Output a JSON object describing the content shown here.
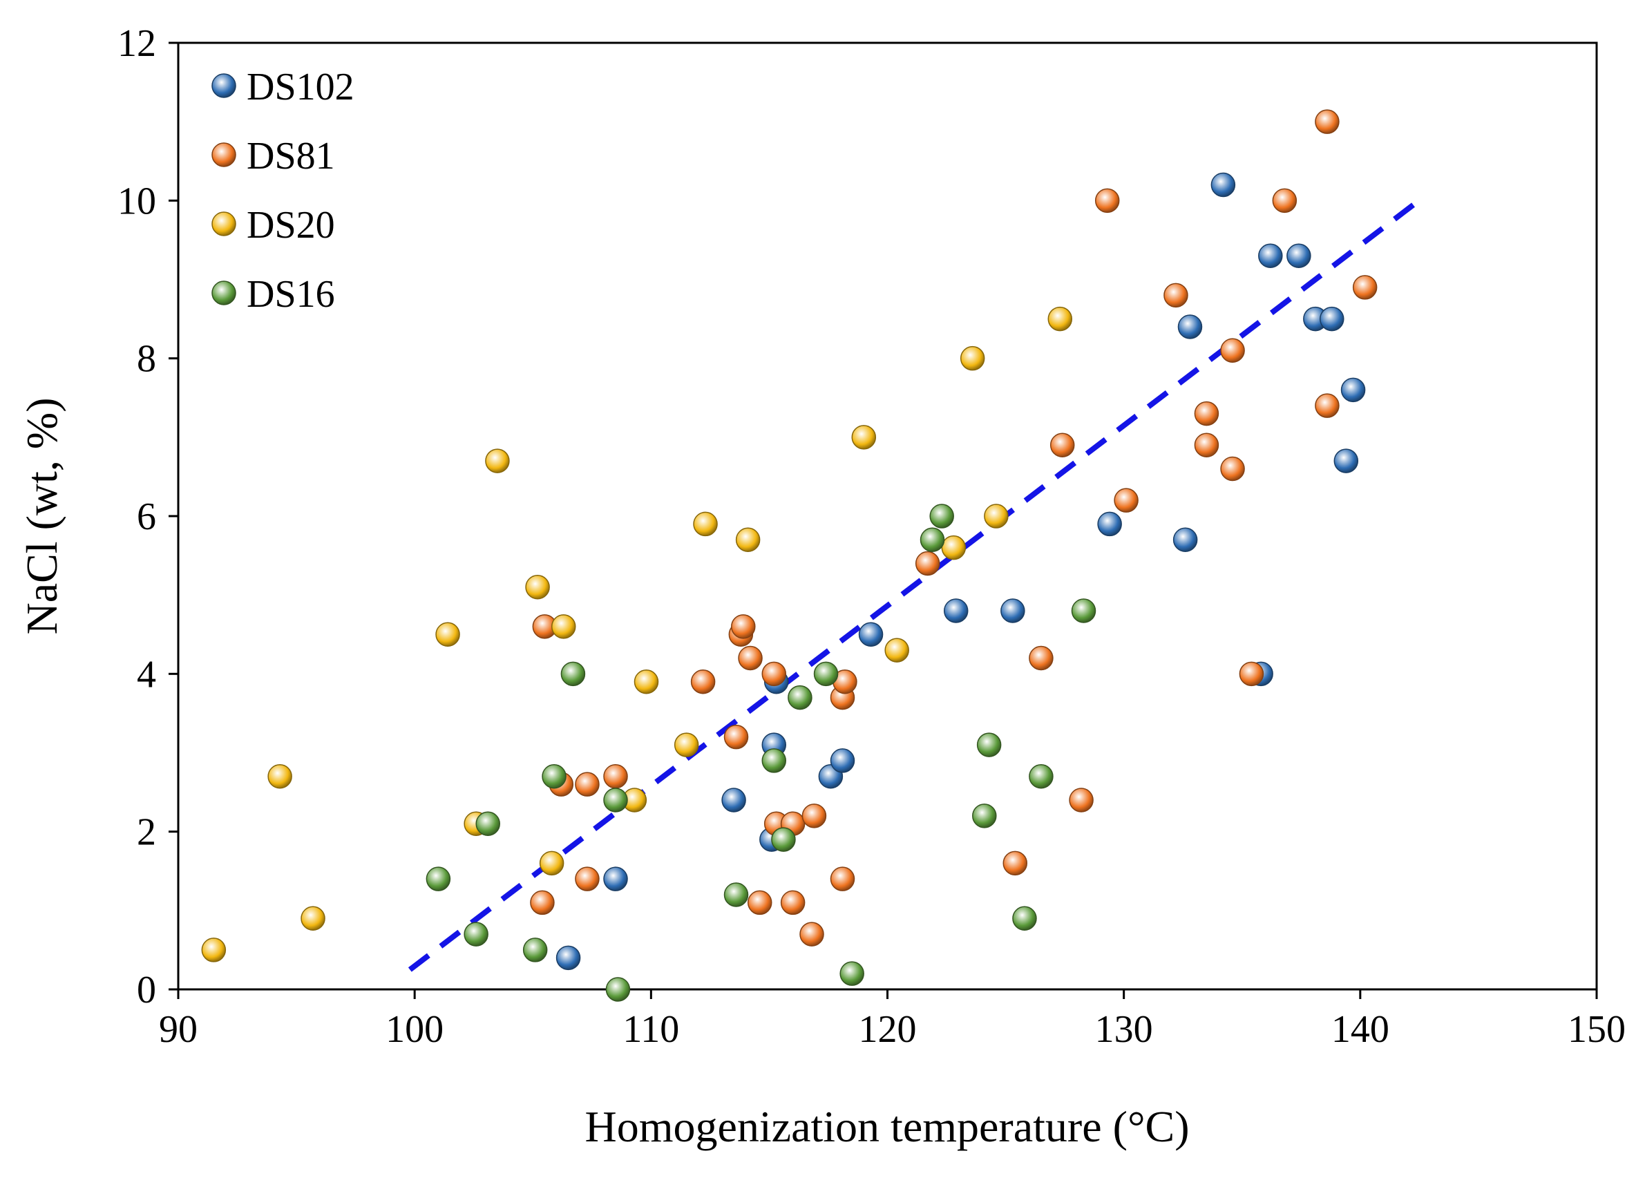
{
  "chart_data": {
    "type": "scatter",
    "title": "",
    "xlabel": "Homogenization temperature (°C)",
    "ylabel": "NaCl (wt, %)",
    "xlim": [
      90,
      150
    ],
    "ylim": [
      0,
      12
    ],
    "xticks": [
      "90",
      "100",
      "110",
      "120",
      "130",
      "140",
      "150"
    ],
    "yticks": [
      "0",
      "2",
      "4",
      "6",
      "8",
      "10",
      "12"
    ],
    "grid": false,
    "legend_position": "top-left",
    "series": [
      {
        "name": "DS102",
        "color": "#2E6DB4",
        "points": [
          [
            106.5,
            0.4
          ],
          [
            108.5,
            1.4
          ],
          [
            113.5,
            2.4
          ],
          [
            115.1,
            1.9
          ],
          [
            115.2,
            3.1
          ],
          [
            115.3,
            3.9
          ],
          [
            117.6,
            2.7
          ],
          [
            118.1,
            2.9
          ],
          [
            119.3,
            4.5
          ],
          [
            122.9,
            4.8
          ],
          [
            125.3,
            4.8
          ],
          [
            129.4,
            5.9
          ],
          [
            132.6,
            5.7
          ],
          [
            132.8,
            8.4
          ],
          [
            134.2,
            10.2
          ],
          [
            135.8,
            4.0
          ],
          [
            136.2,
            9.3
          ],
          [
            137.4,
            9.3
          ],
          [
            138.1,
            8.5
          ],
          [
            138.8,
            8.5
          ],
          [
            139.4,
            6.7
          ],
          [
            139.7,
            7.6
          ]
        ]
      },
      {
        "name": "DS81",
        "color": "#EE7320",
        "points": [
          [
            105.4,
            1.1
          ],
          [
            105.5,
            4.6
          ],
          [
            106.2,
            2.6
          ],
          [
            107.3,
            1.4
          ],
          [
            107.3,
            2.6
          ],
          [
            108.5,
            2.7
          ],
          [
            112.2,
            3.9
          ],
          [
            113.6,
            3.2
          ],
          [
            113.8,
            4.5
          ],
          [
            113.9,
            4.6
          ],
          [
            114.2,
            4.2
          ],
          [
            114.6,
            1.1
          ],
          [
            115.2,
            4.0
          ],
          [
            115.3,
            2.1
          ],
          [
            116.0,
            1.1
          ],
          [
            116.0,
            2.1
          ],
          [
            116.8,
            0.7
          ],
          [
            116.9,
            2.2
          ],
          [
            118.1,
            1.4
          ],
          [
            118.1,
            3.7
          ],
          [
            118.2,
            3.9
          ],
          [
            121.7,
            5.4
          ],
          [
            125.4,
            1.6
          ],
          [
            126.5,
            4.2
          ],
          [
            127.4,
            6.9
          ],
          [
            128.2,
            2.4
          ],
          [
            129.3,
            10.0
          ],
          [
            130.1,
            6.2
          ],
          [
            132.2,
            8.8
          ],
          [
            133.5,
            6.9
          ],
          [
            133.5,
            7.3
          ],
          [
            134.6,
            6.6
          ],
          [
            134.6,
            8.1
          ],
          [
            135.4,
            4.0
          ],
          [
            136.8,
            10.0
          ],
          [
            138.6,
            7.4
          ],
          [
            138.6,
            11.0
          ],
          [
            140.2,
            8.9
          ]
        ]
      },
      {
        "name": "DS20",
        "color": "#F2B711",
        "points": [
          [
            91.5,
            0.5
          ],
          [
            94.3,
            2.7
          ],
          [
            95.7,
            0.9
          ],
          [
            101.4,
            4.5
          ],
          [
            102.6,
            2.1
          ],
          [
            103.5,
            6.7
          ],
          [
            105.2,
            5.1
          ],
          [
            105.8,
            1.6
          ],
          [
            106.3,
            4.6
          ],
          [
            109.3,
            2.4
          ],
          [
            109.8,
            3.9
          ],
          [
            111.5,
            3.1
          ],
          [
            112.3,
            5.9
          ],
          [
            114.1,
            5.7
          ],
          [
            119.0,
            7.0
          ],
          [
            120.4,
            4.3
          ],
          [
            122.8,
            5.6
          ],
          [
            123.6,
            8.0
          ],
          [
            124.6,
            6.0
          ],
          [
            127.3,
            8.5
          ]
        ]
      },
      {
        "name": "DS16",
        "color": "#5A9A3A",
        "points": [
          [
            101.0,
            1.4
          ],
          [
            102.6,
            0.7
          ],
          [
            103.1,
            2.1
          ],
          [
            105.1,
            0.5
          ],
          [
            105.9,
            2.7
          ],
          [
            106.7,
            4.0
          ],
          [
            108.5,
            2.4
          ],
          [
            108.6,
            0.0
          ],
          [
            113.6,
            1.2
          ],
          [
            115.2,
            2.9
          ],
          [
            115.6,
            1.9
          ],
          [
            116.3,
            3.7
          ],
          [
            117.4,
            4.0
          ],
          [
            118.5,
            0.2
          ],
          [
            121.9,
            5.7
          ],
          [
            122.3,
            6.0
          ],
          [
            124.1,
            2.2
          ],
          [
            124.3,
            3.1
          ],
          [
            125.8,
            0.9
          ],
          [
            126.5,
            2.7
          ],
          [
            128.3,
            4.8
          ]
        ]
      }
    ],
    "trendline": {
      "style": "dashed",
      "color": "#1414E6",
      "from": [
        99.8,
        0.25
      ],
      "to": [
        142.7,
        10.05
      ]
    }
  }
}
